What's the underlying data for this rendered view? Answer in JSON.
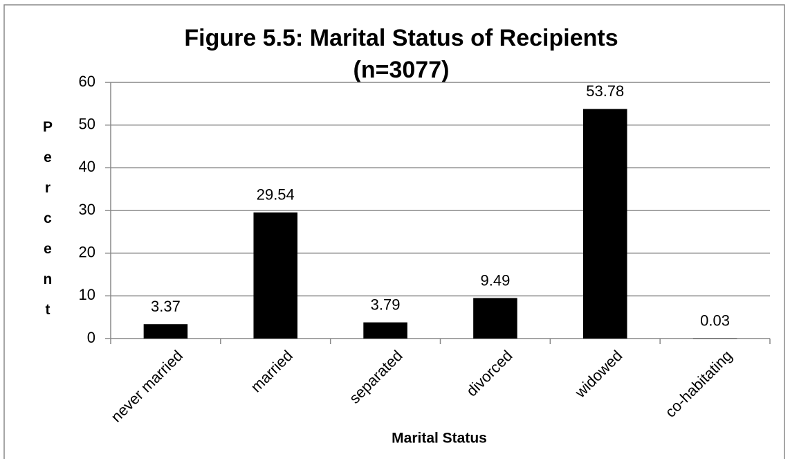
{
  "chart_data": {
    "type": "bar",
    "title_lines": [
      "Figure 5.5: Marital Status of Recipients",
      "(n=3077)"
    ],
    "x_label": "Marital Status",
    "y_label": "Percent",
    "categories": [
      "never married",
      "married",
      "separated",
      "divorced",
      "widowed",
      "co-habitating"
    ],
    "values": [
      3.37,
      29.54,
      3.79,
      9.49,
      53.78,
      0.03
    ],
    "value_labels": [
      "3.37",
      "29.54",
      "3.79",
      "9.49",
      "53.78",
      "0.03"
    ],
    "color": "#000000",
    "ylim": [
      0,
      60
    ],
    "yticks": [
      0,
      10,
      20,
      30,
      40,
      50,
      60
    ],
    "grid": true
  }
}
